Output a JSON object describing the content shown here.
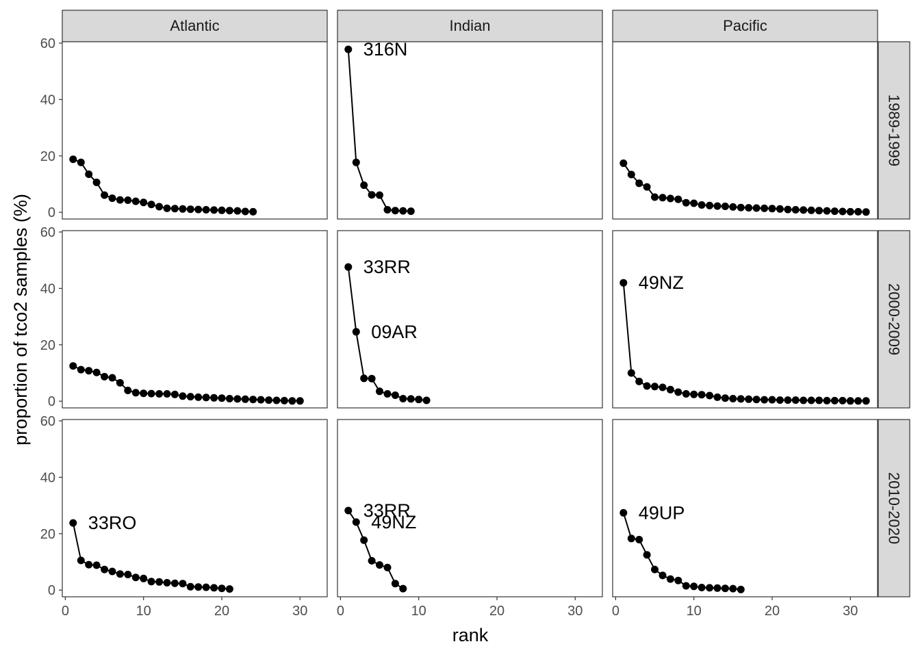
{
  "chart_data": {
    "type": "line",
    "xlabel": "rank",
    "ylabel": "proportion of tco2 samples (%)",
    "xlim": [
      0,
      30
    ],
    "ylim": [
      0,
      60
    ],
    "x_ticks": [
      0,
      10,
      20,
      30
    ],
    "y_ticks": [
      0,
      20,
      40,
      60
    ],
    "grid": false,
    "columns": [
      "Atlantic",
      "Indian",
      "Pacific"
    ],
    "rows": [
      "1989-1999",
      "2000-2009",
      "2010-2020"
    ],
    "panels": [
      {
        "column": "Atlantic",
        "row": "1989-1999",
        "values": [
          18.8,
          17.7,
          13.5,
          10.6,
          6.1,
          5.0,
          4.4,
          4.3,
          3.9,
          3.5,
          2.8,
          2.0,
          1.4,
          1.3,
          1.2,
          1.1,
          1.0,
          0.9,
          0.8,
          0.7,
          0.6,
          0.5,
          0.3,
          0.2
        ],
        "labels": []
      },
      {
        "column": "Indian",
        "row": "1989-1999",
        "values": [
          57.8,
          17.7,
          9.6,
          6.2,
          6.1,
          0.9,
          0.6,
          0.5,
          0.4
        ],
        "labels": [
          {
            "rank": 1,
            "text": "316N"
          }
        ]
      },
      {
        "column": "Pacific",
        "row": "1989-1999",
        "values": [
          17.4,
          13.4,
          10.3,
          9.0,
          5.4,
          5.2,
          4.9,
          4.6,
          3.4,
          3.2,
          2.6,
          2.4,
          2.2,
          2.1,
          1.9,
          1.7,
          1.6,
          1.5,
          1.4,
          1.3,
          1.2,
          1.0,
          0.9,
          0.8,
          0.7,
          0.6,
          0.5,
          0.4,
          0.3,
          0.2,
          0.2,
          0.1
        ],
        "labels": []
      },
      {
        "column": "Atlantic",
        "row": "2000-2009",
        "values": [
          12.5,
          11.2,
          10.8,
          10.2,
          8.7,
          8.3,
          6.5,
          3.8,
          3.0,
          2.8,
          2.7,
          2.6,
          2.6,
          2.4,
          1.8,
          1.6,
          1.4,
          1.3,
          1.2,
          1.1,
          0.9,
          0.8,
          0.7,
          0.6,
          0.5,
          0.4,
          0.3,
          0.2,
          0.1,
          0.1
        ],
        "labels": []
      },
      {
        "column": "Indian",
        "row": "2000-2009",
        "values": [
          47.6,
          24.6,
          8.1,
          8.0,
          3.5,
          2.6,
          2.1,
          0.9,
          0.8,
          0.6,
          0.3
        ],
        "labels": [
          {
            "rank": 1,
            "text": "33RR"
          },
          {
            "rank": 2,
            "text": "09AR"
          }
        ]
      },
      {
        "column": "Pacific",
        "row": "2000-2009",
        "values": [
          42.0,
          10.0,
          7.0,
          5.4,
          5.2,
          4.9,
          4.1,
          3.2,
          2.6,
          2.4,
          2.3,
          2.0,
          1.4,
          1.1,
          0.9,
          0.8,
          0.7,
          0.6,
          0.5,
          0.5,
          0.4,
          0.4,
          0.4,
          0.3,
          0.3,
          0.3,
          0.2,
          0.2,
          0.2,
          0.1,
          0.1,
          0.1
        ],
        "labels": [
          {
            "rank": 1,
            "text": "49NZ"
          }
        ]
      },
      {
        "column": "Atlantic",
        "row": "2010-2020",
        "values": [
          23.8,
          10.5,
          9.0,
          8.8,
          7.3,
          6.6,
          5.7,
          5.5,
          4.5,
          4.1,
          3.0,
          2.9,
          2.6,
          2.4,
          2.3,
          1.2,
          1.1,
          1.0,
          0.8,
          0.6,
          0.4
        ],
        "labels": [
          {
            "rank": 1,
            "text": "33RO"
          }
        ]
      },
      {
        "column": "Indian",
        "row": "2010-2020",
        "values": [
          28.2,
          24.1,
          17.7,
          10.4,
          8.9,
          8.0,
          2.3,
          0.5
        ],
        "labels": [
          {
            "rank": 1,
            "text": "33RR"
          },
          {
            "rank": 2,
            "text": "49NZ"
          }
        ]
      },
      {
        "column": "Pacific",
        "row": "2010-2020",
        "values": [
          27.4,
          18.3,
          17.9,
          12.5,
          7.3,
          5.2,
          3.9,
          3.4,
          1.5,
          1.3,
          0.9,
          0.8,
          0.7,
          0.6,
          0.5,
          0.2
        ],
        "labels": [
          {
            "rank": 1,
            "text": "49UP"
          }
        ]
      }
    ]
  }
}
